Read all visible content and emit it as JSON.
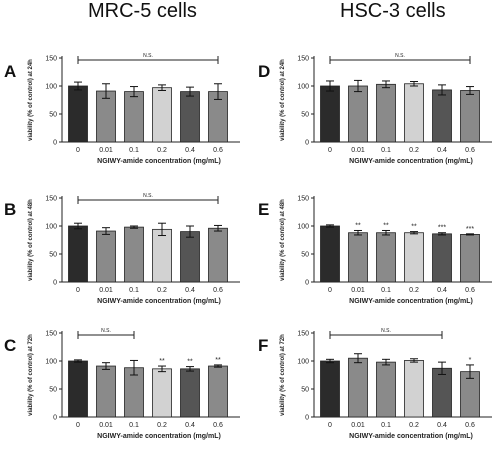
{
  "titles": {
    "left": "MRC-5 cells",
    "right": "HSC-3 cells"
  },
  "chart_data": [
    {
      "type": "bar",
      "panel": "A",
      "categories": [
        "0",
        "0.01",
        "0.1",
        "0.2",
        "0.4",
        "0.6"
      ],
      "values": [
        100,
        91,
        90,
        97,
        90,
        90
      ],
      "errors": [
        7,
        13,
        9,
        5,
        8,
        14
      ],
      "colors": [
        "#2b2b2b",
        "#8a8a8a",
        "#8a8a8a",
        "#d2d2d2",
        "#555555",
        "#8a8a8a"
      ],
      "significance": [
        "",
        "",
        "",
        "",
        "",
        ""
      ],
      "bracket": {
        "from": 0,
        "to": 5,
        "label": "N.S."
      },
      "xlabel": "NGIWY-amide concentration (mg/mL)",
      "ylabel": "viability (% of control) at 24h",
      "ylim": [
        0,
        150
      ],
      "yticks": [
        0,
        50,
        100,
        150
      ]
    },
    {
      "type": "bar",
      "panel": "B",
      "categories": [
        "0",
        "0.01",
        "0.1",
        "0.2",
        "0.4",
        "0.6"
      ],
      "values": [
        100,
        91,
        98,
        94,
        90,
        96
      ],
      "errors": [
        5,
        6,
        2,
        11,
        10,
        5
      ],
      "colors": [
        "#2b2b2b",
        "#8a8a8a",
        "#8a8a8a",
        "#d2d2d2",
        "#555555",
        "#8a8a8a"
      ],
      "significance": [
        "",
        "",
        "",
        "",
        "",
        ""
      ],
      "bracket": {
        "from": 0,
        "to": 5,
        "label": "N.S."
      },
      "xlabel": "NGIWY-amide concentration (mg/mL)",
      "ylabel": "viability (% of control) at 48h",
      "ylim": [
        0,
        150
      ],
      "yticks": [
        0,
        50,
        100,
        150
      ]
    },
    {
      "type": "bar",
      "panel": "C",
      "categories": [
        "0",
        "0.01",
        "0.1",
        "0.2",
        "0.4",
        "0.6"
      ],
      "values": [
        100,
        91,
        88,
        86,
        86,
        91
      ],
      "errors": [
        2,
        6,
        13,
        5,
        4,
        2
      ],
      "colors": [
        "#2b2b2b",
        "#8a8a8a",
        "#8a8a8a",
        "#d2d2d2",
        "#555555",
        "#8a8a8a"
      ],
      "significance": [
        "",
        "",
        "",
        "**",
        "**",
        "**"
      ],
      "bracket": {
        "from": 0,
        "to": 2,
        "label": "N.S."
      },
      "xlabel": "NGIWY-amide concentration (mg/mL)",
      "ylabel": "viability (% of control) at 72h",
      "ylim": [
        0,
        150
      ],
      "yticks": [
        0,
        50,
        100,
        150
      ]
    },
    {
      "type": "bar",
      "panel": "D",
      "categories": [
        "0",
        "0.01",
        "0.1",
        "0.2",
        "0.4",
        "0.6"
      ],
      "values": [
        100,
        100,
        103,
        104,
        93,
        92
      ],
      "errors": [
        9,
        10,
        6,
        4,
        9,
        7
      ],
      "colors": [
        "#2b2b2b",
        "#8a8a8a",
        "#8a8a8a",
        "#d2d2d2",
        "#555555",
        "#8a8a8a"
      ],
      "significance": [
        "",
        "",
        "",
        "",
        "",
        ""
      ],
      "bracket": {
        "from": 0,
        "to": 5,
        "label": "N.S."
      },
      "xlabel": "NGIWY-amide concentration (mg/mL)",
      "ylabel": "viability (% of control) at 24h",
      "ylim": [
        0,
        150
      ],
      "yticks": [
        0,
        50,
        100,
        150
      ]
    },
    {
      "type": "bar",
      "panel": "E",
      "categories": [
        "0",
        "0.01",
        "0.1",
        "0.2",
        "0.4",
        "0.6"
      ],
      "values": [
        100,
        88,
        88,
        88,
        86,
        85
      ],
      "errors": [
        2,
        4,
        4,
        2,
        2,
        1
      ],
      "colors": [
        "#2b2b2b",
        "#8a8a8a",
        "#8a8a8a",
        "#d2d2d2",
        "#555555",
        "#8a8a8a"
      ],
      "significance": [
        "",
        "**",
        "**",
        "**",
        "***",
        "***"
      ],
      "bracket": null,
      "xlabel": "NGIWY-amide concentration (mg/mL)",
      "ylabel": "viability (% of control) at 48h",
      "ylim": [
        0,
        150
      ],
      "yticks": [
        0,
        50,
        100,
        150
      ]
    },
    {
      "type": "bar",
      "panel": "F",
      "categories": [
        "0",
        "0.01",
        "0.1",
        "0.2",
        "0.4",
        "0.6"
      ],
      "values": [
        100,
        105,
        98,
        101,
        87,
        81
      ],
      "errors": [
        3,
        8,
        5,
        3,
        11,
        12
      ],
      "colors": [
        "#2b2b2b",
        "#8a8a8a",
        "#8a8a8a",
        "#d2d2d2",
        "#555555",
        "#8a8a8a"
      ],
      "significance": [
        "",
        "",
        "",
        "",
        "",
        "*"
      ],
      "bracket": {
        "from": 0,
        "to": 4,
        "label": "N.S."
      },
      "xlabel": "NGIWY-amide concentration (mg/mL)",
      "ylabel": "viability (% of control) at 72h",
      "ylim": [
        0,
        150
      ],
      "yticks": [
        0,
        50,
        100,
        150
      ]
    }
  ]
}
